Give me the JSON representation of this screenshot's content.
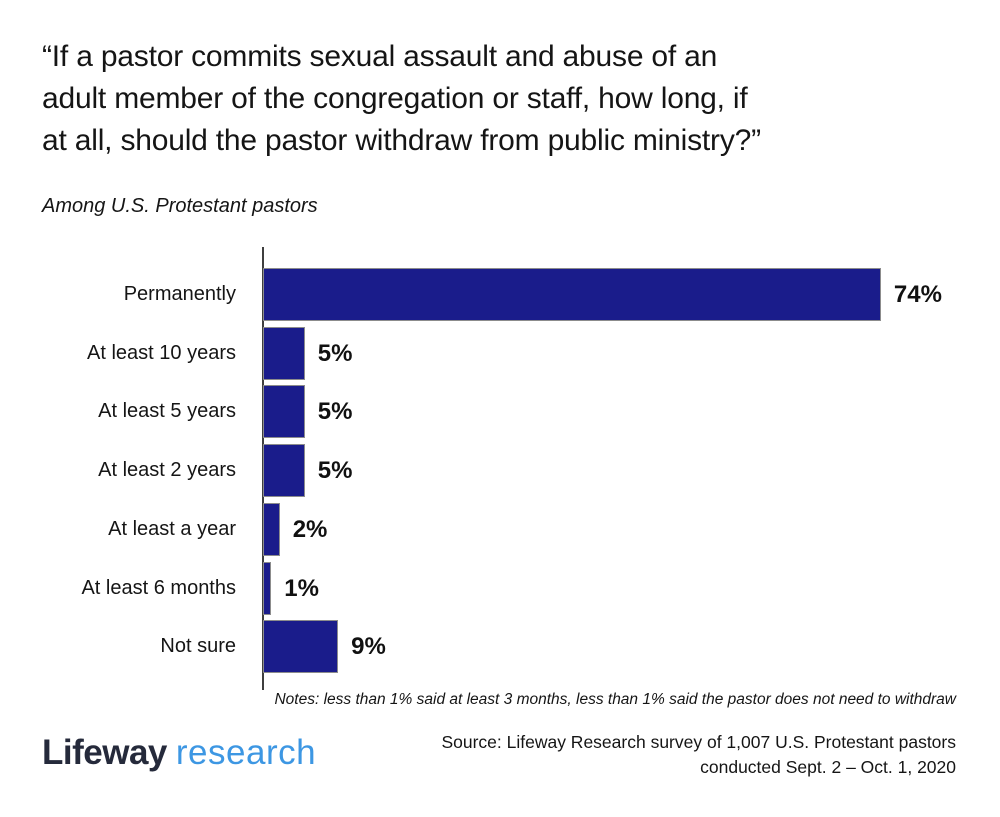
{
  "colors": {
    "bar": "#1A1C8B",
    "bar_border": "#8c8c8c",
    "axis": "#3f3f3f",
    "text": "#151515",
    "logo_primary": "#252A3B",
    "logo_secondary": "#3D97E3"
  },
  "header": {
    "title_lines": [
      "“If a pastor commits sexual assault and abuse of an",
      "adult member of the congregation or staff, how long, if",
      "at all, should the pastor withdraw from public ministry?”"
    ],
    "subtitle": "Among U.S. Protestant pastors"
  },
  "chart_data": {
    "type": "bar",
    "orientation": "horizontal",
    "title": "“If a pastor commits sexual assault and abuse of an adult member of the congregation or staff, how long, if at all, should the pastor withdraw from public ministry?”",
    "subtitle": "Among U.S. Protestant pastors",
    "categories": [
      "Permanently",
      "At least 10 years",
      "At least 5 years",
      "At least 2 years",
      "At least a year",
      "At least 6 months",
      "Not sure"
    ],
    "values": [
      74,
      5,
      5,
      5,
      2,
      1,
      9
    ],
    "value_labels": [
      "74%",
      "5%",
      "5%",
      "5%",
      "2%",
      "1%",
      "9%"
    ],
    "xlim": [
      0,
      100
    ],
    "grid": false,
    "legend": false,
    "bar_color": "#1A1C8B",
    "value_label_position": "right-of-bar"
  },
  "notes": "Notes: less than 1% said at least 3 months, less than 1% said the pastor does not need to withdraw",
  "footer": {
    "logo_primary": "Lifeway",
    "logo_secondary": "research",
    "source_lines": [
      "Source: Lifeway Research survey of 1,007 U.S. Protestant pastors",
      "conducted Sept. 2 – Oct. 1, 2020"
    ]
  }
}
